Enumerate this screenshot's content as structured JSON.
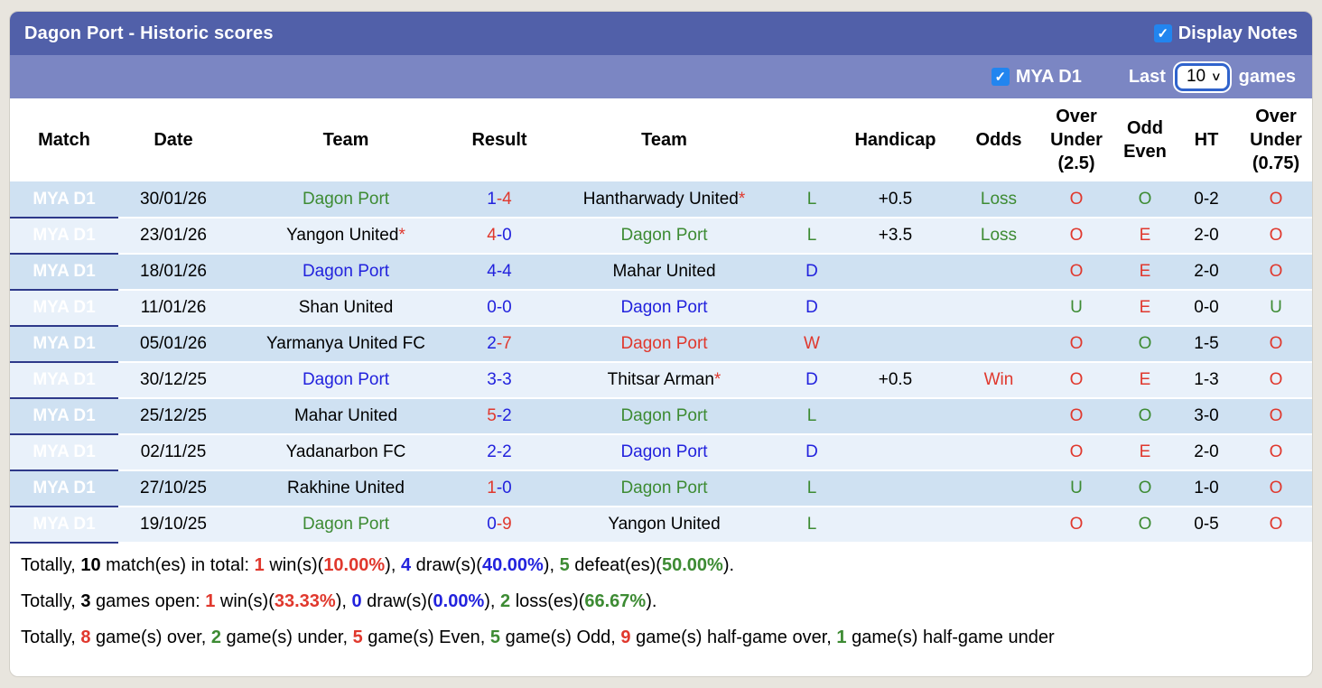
{
  "header": {
    "title": "Dagon Port - Historic scores",
    "display_notes_label": "Display Notes",
    "display_notes_checked": true
  },
  "filter_bar": {
    "league_label": "MYA D1",
    "league_checked": true,
    "last_label": "Last",
    "games_count": "10",
    "games_label": "games"
  },
  "icons": {
    "checkmark": "✓",
    "chevron_down": "∨"
  },
  "colors": {
    "red": "#e0382d",
    "blue": "#2222dd",
    "green": "#3d8b33",
    "black": "#000000",
    "header_bg": "#5160a9",
    "filter_bg": "#7b86c3",
    "league_col_bg": "#2e398a",
    "row_odd": "#cfe1f2",
    "row_even": "#e9f1fa",
    "checkbox_blue": "#2285ef",
    "select_border": "#3063cc"
  },
  "table": {
    "columns": [
      "Match",
      "Date",
      "Team",
      "Result",
      "Team",
      "",
      "Handicap",
      "Odds",
      "Over Under (2.5)",
      "Odd Even",
      "HT",
      "Over Under (0.75)"
    ],
    "rows": [
      {
        "league": "MYA D1",
        "date": "30/01/26",
        "home": {
          "name": "Dagon Port",
          "color": "green",
          "star": false
        },
        "score": {
          "home": "1",
          "home_color": "blue",
          "away": "4",
          "away_color": "red"
        },
        "away": {
          "name": "Hantharwady United",
          "color": "black",
          "star": true
        },
        "outcome": {
          "text": "L",
          "color": "green"
        },
        "handicap": "+0.5",
        "odds": {
          "text": "Loss",
          "color": "green"
        },
        "over_under_25": {
          "text": "O",
          "color": "red"
        },
        "odd_even": {
          "text": "O",
          "color": "green"
        },
        "ht": "0-2",
        "over_under_075": {
          "text": "O",
          "color": "red"
        }
      },
      {
        "league": "MYA D1",
        "date": "23/01/26",
        "home": {
          "name": "Yangon United",
          "color": "black",
          "star": true
        },
        "score": {
          "home": "4",
          "home_color": "red",
          "away": "0",
          "away_color": "blue"
        },
        "away": {
          "name": "Dagon Port",
          "color": "green",
          "star": false
        },
        "outcome": {
          "text": "L",
          "color": "green"
        },
        "handicap": "+3.5",
        "odds": {
          "text": "Loss",
          "color": "green"
        },
        "over_under_25": {
          "text": "O",
          "color": "red"
        },
        "odd_even": {
          "text": "E",
          "color": "red"
        },
        "ht": "2-0",
        "over_under_075": {
          "text": "O",
          "color": "red"
        }
      },
      {
        "league": "MYA D1",
        "date": "18/01/26",
        "home": {
          "name": "Dagon Port",
          "color": "blue",
          "star": false
        },
        "score": {
          "home": "4",
          "home_color": "blue",
          "away": "4",
          "away_color": "blue"
        },
        "away": {
          "name": "Mahar United",
          "color": "black",
          "star": false
        },
        "outcome": {
          "text": "D",
          "color": "blue"
        },
        "handicap": "",
        "odds": null,
        "over_under_25": {
          "text": "O",
          "color": "red"
        },
        "odd_even": {
          "text": "E",
          "color": "red"
        },
        "ht": "2-0",
        "over_under_075": {
          "text": "O",
          "color": "red"
        }
      },
      {
        "league": "MYA D1",
        "date": "11/01/26",
        "home": {
          "name": "Shan United",
          "color": "black",
          "star": false
        },
        "score": {
          "home": "0",
          "home_color": "blue",
          "away": "0",
          "away_color": "blue"
        },
        "away": {
          "name": "Dagon Port",
          "color": "blue",
          "star": false
        },
        "outcome": {
          "text": "D",
          "color": "blue"
        },
        "handicap": "",
        "odds": null,
        "over_under_25": {
          "text": "U",
          "color": "green"
        },
        "odd_even": {
          "text": "E",
          "color": "red"
        },
        "ht": "0-0",
        "over_under_075": {
          "text": "U",
          "color": "green"
        }
      },
      {
        "league": "MYA D1",
        "date": "05/01/26",
        "home": {
          "name": "Yarmanya United FC",
          "color": "black",
          "star": false
        },
        "score": {
          "home": "2",
          "home_color": "blue",
          "away": "7",
          "away_color": "red"
        },
        "away": {
          "name": "Dagon Port",
          "color": "red",
          "star": false
        },
        "outcome": {
          "text": "W",
          "color": "red"
        },
        "handicap": "",
        "odds": null,
        "over_under_25": {
          "text": "O",
          "color": "red"
        },
        "odd_even": {
          "text": "O",
          "color": "green"
        },
        "ht": "1-5",
        "over_under_075": {
          "text": "O",
          "color": "red"
        }
      },
      {
        "league": "MYA D1",
        "date": "30/12/25",
        "home": {
          "name": "Dagon Port",
          "color": "blue",
          "star": false
        },
        "score": {
          "home": "3",
          "home_color": "blue",
          "away": "3",
          "away_color": "blue"
        },
        "away": {
          "name": "Thitsar Arman",
          "color": "black",
          "star": true
        },
        "outcome": {
          "text": "D",
          "color": "blue"
        },
        "handicap": "+0.5",
        "odds": {
          "text": "Win",
          "color": "red"
        },
        "over_under_25": {
          "text": "O",
          "color": "red"
        },
        "odd_even": {
          "text": "E",
          "color": "red"
        },
        "ht": "1-3",
        "over_under_075": {
          "text": "O",
          "color": "red"
        }
      },
      {
        "league": "MYA D1",
        "date": "25/12/25",
        "home": {
          "name": "Mahar United",
          "color": "black",
          "star": false
        },
        "score": {
          "home": "5",
          "home_color": "red",
          "away": "2",
          "away_color": "blue"
        },
        "away": {
          "name": "Dagon Port",
          "color": "green",
          "star": false
        },
        "outcome": {
          "text": "L",
          "color": "green"
        },
        "handicap": "",
        "odds": null,
        "over_under_25": {
          "text": "O",
          "color": "red"
        },
        "odd_even": {
          "text": "O",
          "color": "green"
        },
        "ht": "3-0",
        "over_under_075": {
          "text": "O",
          "color": "red"
        }
      },
      {
        "league": "MYA D1",
        "date": "02/11/25",
        "home": {
          "name": "Yadanarbon FC",
          "color": "black",
          "star": false
        },
        "score": {
          "home": "2",
          "home_color": "blue",
          "away": "2",
          "away_color": "blue"
        },
        "away": {
          "name": "Dagon Port",
          "color": "blue",
          "star": false
        },
        "outcome": {
          "text": "D",
          "color": "blue"
        },
        "handicap": "",
        "odds": null,
        "over_under_25": {
          "text": "O",
          "color": "red"
        },
        "odd_even": {
          "text": "E",
          "color": "red"
        },
        "ht": "2-0",
        "over_under_075": {
          "text": "O",
          "color": "red"
        }
      },
      {
        "league": "MYA D1",
        "date": "27/10/25",
        "home": {
          "name": "Rakhine United",
          "color": "black",
          "star": false
        },
        "score": {
          "home": "1",
          "home_color": "red",
          "away": "0",
          "away_color": "blue"
        },
        "away": {
          "name": "Dagon Port",
          "color": "green",
          "star": false
        },
        "outcome": {
          "text": "L",
          "color": "green"
        },
        "handicap": "",
        "odds": null,
        "over_under_25": {
          "text": "U",
          "color": "green"
        },
        "odd_even": {
          "text": "O",
          "color": "green"
        },
        "ht": "1-0",
        "over_under_075": {
          "text": "O",
          "color": "red"
        }
      },
      {
        "league": "MYA D1",
        "date": "19/10/25",
        "home": {
          "name": "Dagon Port",
          "color": "green",
          "star": false
        },
        "score": {
          "home": "0",
          "home_color": "blue",
          "away": "9",
          "away_color": "red"
        },
        "away": {
          "name": "Yangon United",
          "color": "black",
          "star": false
        },
        "outcome": {
          "text": "L",
          "color": "green"
        },
        "handicap": "",
        "odds": null,
        "over_under_25": {
          "text": "O",
          "color": "red"
        },
        "odd_even": {
          "text": "O",
          "color": "green"
        },
        "ht": "0-5",
        "over_under_075": {
          "text": "O",
          "color": "red"
        }
      }
    ]
  },
  "summary": {
    "lines": [
      [
        {
          "t": "Totally, "
        },
        {
          "t": "10",
          "b": true
        },
        {
          "t": " match(es) in total: "
        },
        {
          "t": "1",
          "c": "red",
          "b": true
        },
        {
          "t": " win(s)("
        },
        {
          "t": "10.00%",
          "c": "red",
          "b": true
        },
        {
          "t": "), "
        },
        {
          "t": "4",
          "c": "blue",
          "b": true
        },
        {
          "t": " draw(s)("
        },
        {
          "t": "40.00%",
          "c": "blue",
          "b": true
        },
        {
          "t": "), "
        },
        {
          "t": "5",
          "c": "green",
          "b": true
        },
        {
          "t": " defeat(es)("
        },
        {
          "t": "50.00%",
          "c": "green",
          "b": true
        },
        {
          "t": ")."
        }
      ],
      [
        {
          "t": "Totally, "
        },
        {
          "t": "3",
          "b": true
        },
        {
          "t": " games open: "
        },
        {
          "t": "1",
          "c": "red",
          "b": true
        },
        {
          "t": " win(s)("
        },
        {
          "t": "33.33%",
          "c": "red",
          "b": true
        },
        {
          "t": "), "
        },
        {
          "t": "0",
          "c": "blue",
          "b": true
        },
        {
          "t": " draw(s)("
        },
        {
          "t": "0.00%",
          "c": "blue",
          "b": true
        },
        {
          "t": "), "
        },
        {
          "t": "2",
          "c": "green",
          "b": true
        },
        {
          "t": " loss(es)("
        },
        {
          "t": "66.67%",
          "c": "green",
          "b": true
        },
        {
          "t": ")."
        }
      ],
      [
        {
          "t": "Totally, "
        },
        {
          "t": "8",
          "c": "red",
          "b": true
        },
        {
          "t": " game(s) over, "
        },
        {
          "t": "2",
          "c": "green",
          "b": true
        },
        {
          "t": " game(s) under, "
        },
        {
          "t": "5",
          "c": "red",
          "b": true
        },
        {
          "t": " game(s) Even, "
        },
        {
          "t": "5",
          "c": "green",
          "b": true
        },
        {
          "t": " game(s) Odd, "
        },
        {
          "t": "9",
          "c": "red",
          "b": true
        },
        {
          "t": " game(s) half-game over, "
        },
        {
          "t": "1",
          "c": "green",
          "b": true
        },
        {
          "t": " game(s) half-game under"
        }
      ]
    ]
  }
}
